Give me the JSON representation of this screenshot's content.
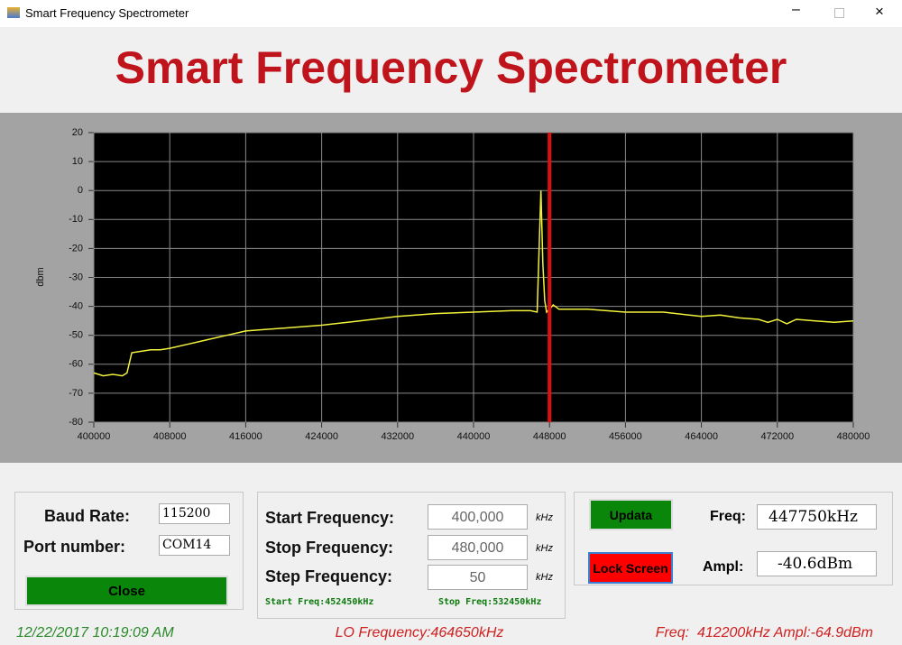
{
  "window": {
    "title": "Smart Frequency Spectrometer"
  },
  "header": {
    "title": "Smart Frequency Spectrometer"
  },
  "chart_data": {
    "type": "line",
    "y_label": "dbm",
    "x": [
      400000,
      401000,
      402000,
      403000,
      403500,
      404000,
      405000,
      406000,
      407000,
      408000,
      410000,
      412000,
      414000,
      416000,
      418000,
      420000,
      424000,
      428000,
      432000,
      436000,
      440000,
      444000,
      446000,
      446700,
      447100,
      447300,
      447500,
      447700,
      448000,
      448400,
      449000,
      452000,
      456000,
      460000,
      464000,
      466000,
      468000,
      470000,
      471000,
      472000,
      473000,
      474000,
      476000,
      478000,
      480000
    ],
    "series": [
      {
        "name": "Spectrum",
        "color": "#f2f23c",
        "values": [
          -63,
          -64,
          -63.5,
          -64,
          -63,
          -56,
          -55.5,
          -55,
          -55,
          -54.5,
          -53,
          -51.5,
          -50,
          -48.5,
          -48,
          -47.5,
          -46.5,
          -45,
          -43.5,
          -42.5,
          -42,
          -41.5,
          -41.5,
          -42,
          0,
          -25,
          -38,
          -42,
          -41,
          -39.5,
          -41,
          -41,
          -42,
          -42,
          -43.5,
          -43,
          -44,
          -44.5,
          -45.5,
          -44.5,
          -46,
          -44.5,
          -45,
          -45.5,
          -45
        ]
      }
    ],
    "cursor": {
      "x": 448000,
      "color": "#e01010"
    },
    "xlim": [
      400000,
      480000
    ],
    "xticks": [
      400000,
      408000,
      416000,
      424000,
      432000,
      440000,
      448000,
      456000,
      464000,
      472000,
      480000
    ],
    "ylim": [
      -80,
      20
    ],
    "yticks": [
      -80,
      -70,
      -60,
      -50,
      -40,
      -30,
      -20,
      -10,
      0,
      10,
      20
    ],
    "grid": true
  },
  "controls": {
    "baud_label": "Baud Rate:",
    "baud_value": "115200",
    "port_label": "Port number:",
    "port_value": "COM14",
    "close_button": "Close",
    "start_label": "Start Frequency:",
    "start_value": "400,000",
    "stop_label": "Stop Frequency:",
    "stop_value": "480,000",
    "step_label": "Step Frequency:",
    "step_value": "50",
    "unit": "kHz",
    "start_info": "Start Freq:452450kHz",
    "stop_info": "Stop Freq:532450kHz",
    "update_button": "Updata",
    "lock_button": "Lock Screen",
    "freq_label": "Freq:",
    "freq_value": "447750kHz",
    "ampl_label": "Ampl:",
    "ampl_value": "-40.6dBm"
  },
  "status": {
    "datetime": "12/22/2017 10:19:09 AM",
    "lo": "LO Frequency:464650kHz",
    "reading": "Freq:  412200kHz Ampl:-64.9dBm"
  }
}
